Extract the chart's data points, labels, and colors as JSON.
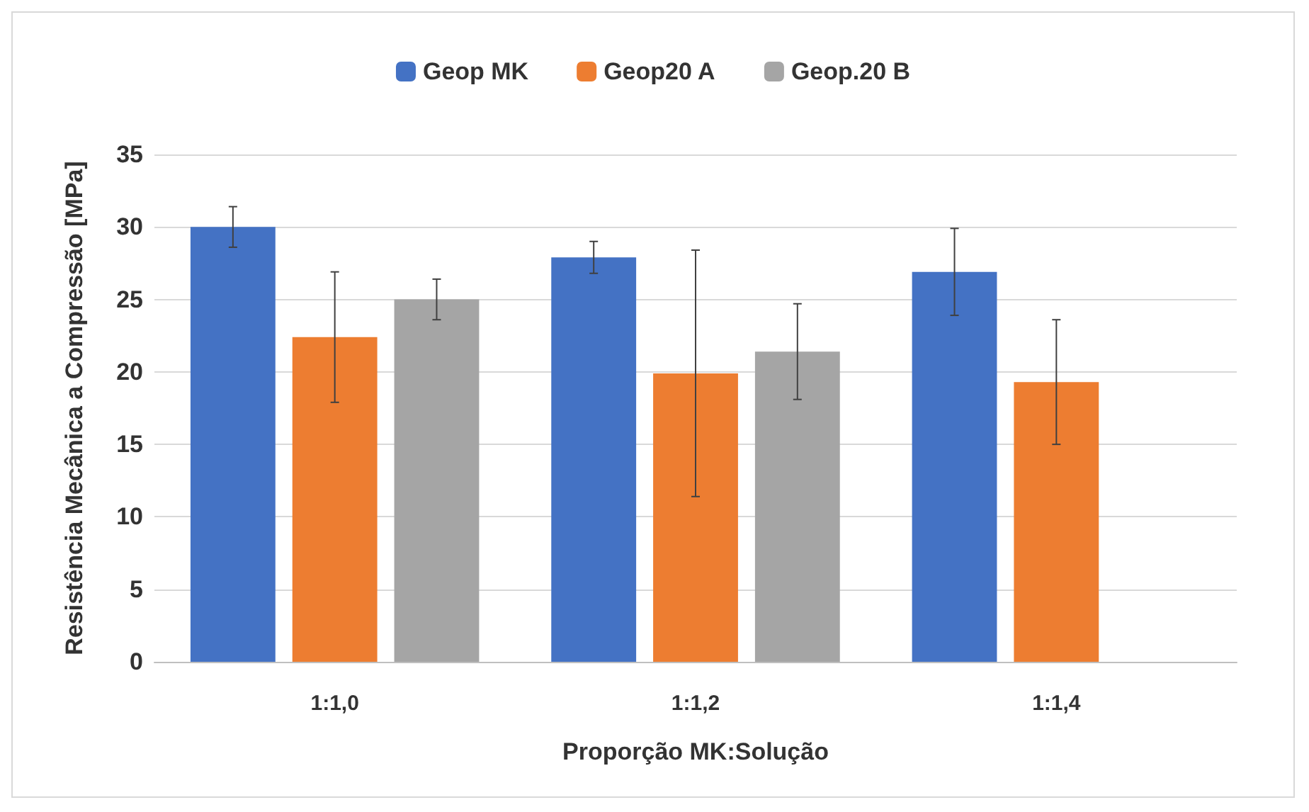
{
  "chart_data": {
    "type": "bar",
    "xlabel": "Proporção MK:Solução",
    "ylabel": "Resistência Mecânica a Compressão [MPa]",
    "categories": [
      "1:1,0",
      "1:1,2",
      "1:1,4"
    ],
    "series": [
      {
        "name": "Geop MK",
        "color": "#4472c4",
        "values": [
          30,
          27.9,
          26.9
        ],
        "errors": [
          1.4,
          1.1,
          3
        ]
      },
      {
        "name": "Geop20 A",
        "color": "#ed7d31",
        "values": [
          22.4,
          19.9,
          19.3
        ],
        "errors": [
          4.5,
          8.5,
          4.3
        ]
      },
      {
        "name": "Geop.20 B",
        "color": "#a5a5a5",
        "values": [
          25,
          21.4,
          null
        ],
        "errors": [
          1.4,
          3.3,
          null
        ]
      }
    ],
    "ylim": [
      0,
      35
    ],
    "yticks": [
      0,
      5,
      10,
      15,
      20,
      25,
      30,
      35
    ],
    "grid": "y",
    "legend": "top"
  }
}
